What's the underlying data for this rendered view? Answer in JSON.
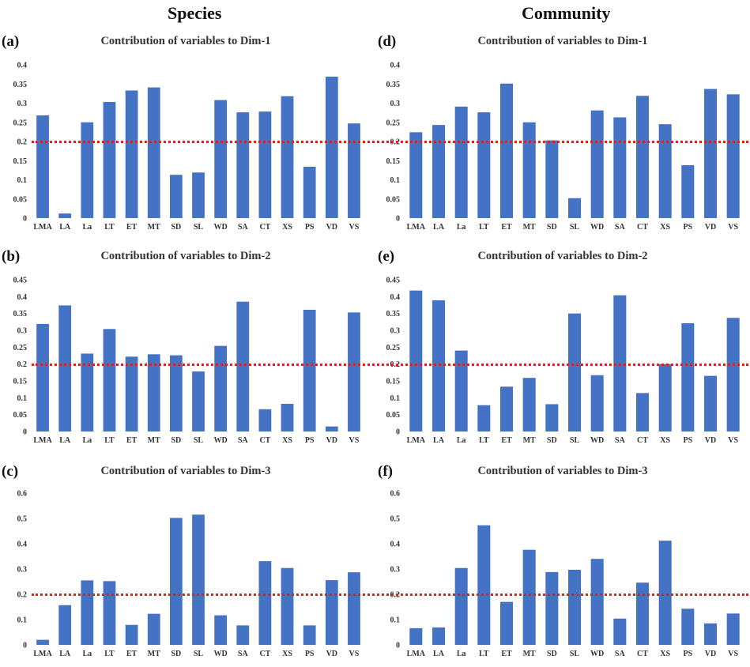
{
  "headers": {
    "left": "Species",
    "right": "Community"
  },
  "style": {
    "bar_color": "#4472c4",
    "ref_color": "#e02020"
  },
  "chart_data": [
    {
      "type": "bar",
      "label": "(a)",
      "title": "Contribution of variables to Dim-1",
      "categories": [
        "LMA",
        "LA",
        "La",
        "LT",
        "ET",
        "MT",
        "SD",
        "SL",
        "WD",
        "SA",
        "CT",
        "XS",
        "PS",
        "VD",
        "VS"
      ],
      "values": [
        0.268,
        0.012,
        0.25,
        0.303,
        0.333,
        0.341,
        0.113,
        0.119,
        0.308,
        0.276,
        0.278,
        0.318,
        0.134,
        0.369,
        0.247
      ],
      "ylim": [
        0,
        0.4
      ],
      "yticks": [
        "0",
        "0.05",
        "0.1",
        "0.15",
        "0.2",
        "0.25",
        "0.3",
        "0.35",
        "0.4"
      ],
      "reference_line": 0.2
    },
    {
      "type": "bar",
      "label": "(b)",
      "title": "Contribution of variables to Dim-2",
      "categories": [
        "LMA",
        "LA",
        "La",
        "LT",
        "ET",
        "MT",
        "SD",
        "SL",
        "WD",
        "SA",
        "CT",
        "XS",
        "PS",
        "VD",
        "VS"
      ],
      "values": [
        0.319,
        0.374,
        0.231,
        0.304,
        0.222,
        0.229,
        0.226,
        0.178,
        0.254,
        0.385,
        0.066,
        0.082,
        0.361,
        0.015,
        0.353
      ],
      "ylim": [
        0,
        0.45
      ],
      "yticks": [
        "0",
        "0.05",
        "0.1",
        "0.15",
        "0.2",
        "0.25",
        "0.3",
        "0.35",
        "0.4",
        "0.45"
      ],
      "reference_line": 0.2
    },
    {
      "type": "bar",
      "label": "(c)",
      "title": "Contribution of variables to Dim-3",
      "categories": [
        "LMA",
        "LA",
        "La",
        "LT",
        "ET",
        "MT",
        "SD",
        "SL",
        "WD",
        "SA",
        "CT",
        "XS",
        "PS",
        "VD",
        "VS"
      ],
      "values": [
        0.02,
        0.157,
        0.255,
        0.252,
        0.079,
        0.123,
        0.502,
        0.515,
        0.117,
        0.077,
        0.331,
        0.304,
        0.077,
        0.256,
        0.287
      ],
      "ylim": [
        0,
        0.6
      ],
      "yticks": [
        "0",
        "0.1",
        "0.2",
        "0.3",
        "0.4",
        "0.5",
        "0.6"
      ],
      "reference_line": 0.2
    },
    {
      "type": "bar",
      "label": "(d)",
      "title": "Contribution of variables to Dim-1",
      "categories": [
        "LMA",
        "LA",
        "La",
        "LT",
        "ET",
        "MT",
        "SD",
        "SL",
        "WD",
        "SA",
        "CT",
        "XS",
        "PS",
        "VD",
        "VS"
      ],
      "values": [
        0.224,
        0.243,
        0.291,
        0.276,
        0.351,
        0.25,
        0.203,
        0.052,
        0.281,
        0.263,
        0.319,
        0.245,
        0.138,
        0.337,
        0.323
      ],
      "ylim": [
        0,
        0.4
      ],
      "yticks": [
        "0",
        "0.05",
        "0.1",
        "0.15",
        "0.2",
        "0.25",
        "0.3",
        "0.35",
        "0.4"
      ],
      "reference_line": 0.2
    },
    {
      "type": "bar",
      "label": "(e)",
      "title": "Contribution of variables to Dim-2",
      "categories": [
        "LMA",
        "LA",
        "La",
        "LT",
        "ET",
        "MT",
        "SD",
        "SL",
        "WD",
        "SA",
        "CT",
        "XS",
        "PS",
        "VD",
        "VS"
      ],
      "values": [
        0.418,
        0.389,
        0.24,
        0.078,
        0.133,
        0.159,
        0.081,
        0.35,
        0.167,
        0.404,
        0.114,
        0.2,
        0.321,
        0.165,
        0.337
      ],
      "ylim": [
        0,
        0.45
      ],
      "yticks": [
        "0",
        "0.05",
        "0.1",
        "0.15",
        "0.2",
        "0.25",
        "0.3",
        "0.35",
        "0.4",
        "0.45"
      ],
      "reference_line": 0.2
    },
    {
      "type": "bar",
      "label": "(f)",
      "title": "Contribution of variables to Dim-3",
      "categories": [
        "LMA",
        "LA",
        "La",
        "LT",
        "ET",
        "MT",
        "SD",
        "SL",
        "WD",
        "SA",
        "CT",
        "XS",
        "PS",
        "VD",
        "VS"
      ],
      "values": [
        0.066,
        0.069,
        0.304,
        0.473,
        0.17,
        0.376,
        0.288,
        0.297,
        0.34,
        0.104,
        0.246,
        0.412,
        0.143,
        0.085,
        0.124
      ],
      "ylim": [
        0,
        0.6
      ],
      "yticks": [
        "0",
        "0.1",
        "0.2",
        "0.3",
        "0.4",
        "0.5",
        "0.6"
      ],
      "reference_line": 0.2
    }
  ]
}
